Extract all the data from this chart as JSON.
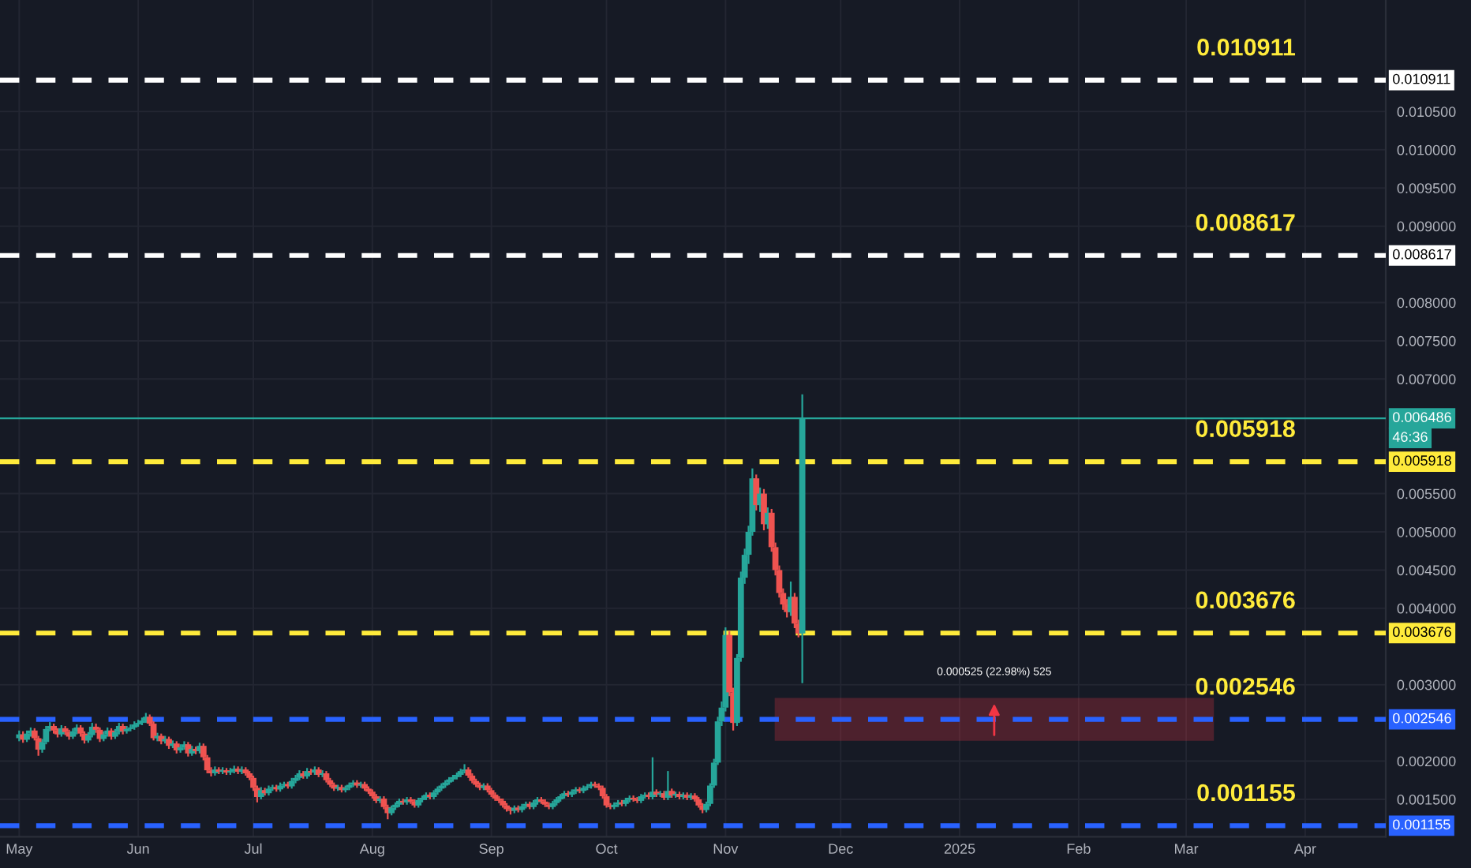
{
  "chart_data": {
    "type": "candlestick",
    "x": [
      "2024-05-01",
      "2024-05-02",
      "2024-05-03",
      "2024-05-04",
      "2024-05-05",
      "2024-05-06",
      "2024-05-07",
      "2024-05-08",
      "2024-05-09",
      "2024-05-10",
      "2024-05-11",
      "2024-05-12",
      "2024-05-13",
      "2024-05-14",
      "2024-05-15",
      "2024-05-16",
      "2024-05-17",
      "2024-05-18",
      "2024-05-19",
      "2024-05-20",
      "2024-05-21",
      "2024-05-22",
      "2024-05-23",
      "2024-05-24",
      "2024-05-25",
      "2024-05-26",
      "2024-05-27",
      "2024-05-28",
      "2024-05-29",
      "2024-05-30",
      "2024-05-31",
      "2024-06-01",
      "2024-06-02",
      "2024-06-03",
      "2024-06-04",
      "2024-06-05",
      "2024-06-06",
      "2024-06-07",
      "2024-06-08",
      "2024-06-09",
      "2024-06-10",
      "2024-06-11",
      "2024-06-12",
      "2024-06-13",
      "2024-06-14",
      "2024-06-15",
      "2024-06-16",
      "2024-06-17",
      "2024-06-18",
      "2024-06-19",
      "2024-06-20",
      "2024-06-21",
      "2024-06-22",
      "2024-06-23",
      "2024-06-24",
      "2024-06-25",
      "2024-06-26",
      "2024-06-27",
      "2024-06-28",
      "2024-06-29",
      "2024-06-30",
      "2024-07-01",
      "2024-07-02",
      "2024-07-03",
      "2024-07-04",
      "2024-07-05",
      "2024-07-06",
      "2024-07-07",
      "2024-07-08",
      "2024-07-09",
      "2024-07-10",
      "2024-07-11",
      "2024-07-12",
      "2024-07-13",
      "2024-07-14",
      "2024-07-15",
      "2024-07-16",
      "2024-07-17",
      "2024-07-18",
      "2024-07-19",
      "2024-07-20",
      "2024-07-21",
      "2024-07-22",
      "2024-07-23",
      "2024-07-24",
      "2024-07-25",
      "2024-07-26",
      "2024-07-27",
      "2024-07-28",
      "2024-07-29",
      "2024-07-30",
      "2024-07-31",
      "2024-08-01",
      "2024-08-02",
      "2024-08-03",
      "2024-08-04",
      "2024-08-05",
      "2024-08-06",
      "2024-08-07",
      "2024-08-08",
      "2024-08-09",
      "2024-08-10",
      "2024-08-11",
      "2024-08-12",
      "2024-08-13",
      "2024-08-14",
      "2024-08-15",
      "2024-08-16",
      "2024-08-17",
      "2024-08-18",
      "2024-08-19",
      "2024-08-20",
      "2024-08-21",
      "2024-08-22",
      "2024-08-23",
      "2024-08-24",
      "2024-08-25",
      "2024-08-26",
      "2024-08-27",
      "2024-08-28",
      "2024-08-29",
      "2024-08-30",
      "2024-08-31",
      "2024-09-01",
      "2024-09-02",
      "2024-09-03",
      "2024-09-04",
      "2024-09-05",
      "2024-09-06",
      "2024-09-07",
      "2024-09-08",
      "2024-09-09",
      "2024-09-10",
      "2024-09-11",
      "2024-09-12",
      "2024-09-13",
      "2024-09-14",
      "2024-09-15",
      "2024-09-16",
      "2024-09-17",
      "2024-09-18",
      "2024-09-19",
      "2024-09-20",
      "2024-09-21",
      "2024-09-22",
      "2024-09-23",
      "2024-09-24",
      "2024-09-25",
      "2024-09-26",
      "2024-09-27",
      "2024-09-28",
      "2024-09-29",
      "2024-09-30",
      "2024-10-01",
      "2024-10-02",
      "2024-10-03",
      "2024-10-04",
      "2024-10-05",
      "2024-10-06",
      "2024-10-07",
      "2024-10-08",
      "2024-10-09",
      "2024-10-10",
      "2024-10-11",
      "2024-10-12",
      "2024-10-13",
      "2024-10-14",
      "2024-10-15",
      "2024-10-16",
      "2024-10-17",
      "2024-10-18",
      "2024-10-19",
      "2024-10-20",
      "2024-10-21",
      "2024-10-22",
      "2024-10-23",
      "2024-10-24",
      "2024-10-25",
      "2024-10-26",
      "2024-10-27",
      "2024-10-28",
      "2024-10-29",
      "2024-10-30",
      "2024-10-31",
      "2024-11-01",
      "2024-11-02",
      "2024-11-03",
      "2024-11-04",
      "2024-11-05",
      "2024-11-06",
      "2024-11-07",
      "2024-11-08",
      "2024-11-09",
      "2024-11-10",
      "2024-11-11",
      "2024-11-12",
      "2024-11-13",
      "2024-11-14",
      "2024-11-15",
      "2024-11-16",
      "2024-11-17",
      "2024-11-18",
      "2024-11-19",
      "2024-11-20",
      "2024-11-21"
    ],
    "ohlc": [
      [
        0.0023,
        0.0024,
        0.00226,
        0.00235
      ],
      [
        0.00235,
        0.00239,
        0.00224,
        0.00228
      ],
      [
        0.00228,
        0.0024,
        0.00225,
        0.00236
      ],
      [
        0.00236,
        0.00244,
        0.00232,
        0.0024
      ],
      [
        0.0024,
        0.00243,
        0.00227,
        0.0023
      ],
      [
        0.0023,
        0.00233,
        0.00207,
        0.00215
      ],
      [
        0.00215,
        0.00229,
        0.00211,
        0.00225
      ],
      [
        0.00225,
        0.00246,
        0.00222,
        0.00242
      ],
      [
        0.00242,
        0.00251,
        0.00239,
        0.00246
      ],
      [
        0.00246,
        0.00249,
        0.00236,
        0.0024
      ],
      [
        0.0024,
        0.00243,
        0.00231,
        0.00235
      ],
      [
        0.00235,
        0.00247,
        0.00232,
        0.00243
      ],
      [
        0.00243,
        0.00246,
        0.00234,
        0.00238
      ],
      [
        0.00238,
        0.00241,
        0.00228,
        0.00232
      ],
      [
        0.00232,
        0.00243,
        0.00229,
        0.00239
      ],
      [
        0.00239,
        0.00248,
        0.00235,
        0.00244
      ],
      [
        0.00244,
        0.00247,
        0.00232,
        0.00236
      ],
      [
        0.00236,
        0.00239,
        0.00223,
        0.00227
      ],
      [
        0.00227,
        0.00238,
        0.00224,
        0.00234
      ],
      [
        0.00234,
        0.0025,
        0.00231,
        0.00245
      ],
      [
        0.00245,
        0.00249,
        0.00237,
        0.00241
      ],
      [
        0.00241,
        0.00244,
        0.00225,
        0.00229
      ],
      [
        0.00229,
        0.00239,
        0.00226,
        0.00235
      ],
      [
        0.00235,
        0.00244,
        0.00232,
        0.0024
      ],
      [
        0.0024,
        0.00243,
        0.00228,
        0.00232
      ],
      [
        0.00232,
        0.00242,
        0.00229,
        0.00238
      ],
      [
        0.00238,
        0.0025,
        0.00235,
        0.00246
      ],
      [
        0.00246,
        0.00249,
        0.00235,
        0.00239
      ],
      [
        0.00239,
        0.00246,
        0.00236,
        0.00242
      ],
      [
        0.00242,
        0.00248,
        0.00239,
        0.00244
      ],
      [
        0.00244,
        0.00252,
        0.00241,
        0.00248
      ],
      [
        0.00248,
        0.00254,
        0.00245,
        0.0025
      ],
      [
        0.0025,
        0.00257,
        0.00247,
        0.00253
      ],
      [
        0.00253,
        0.00263,
        0.0025,
        0.00258
      ],
      [
        0.00258,
        0.00261,
        0.00246,
        0.00249
      ],
      [
        0.00249,
        0.00252,
        0.00227,
        0.0023
      ],
      [
        0.0023,
        0.00237,
        0.00226,
        0.00233
      ],
      [
        0.00233,
        0.00236,
        0.00222,
        0.00226
      ],
      [
        0.00226,
        0.00233,
        0.00223,
        0.00229
      ],
      [
        0.00229,
        0.00232,
        0.00216,
        0.0022
      ],
      [
        0.0022,
        0.00227,
        0.00217,
        0.00223
      ],
      [
        0.00223,
        0.00226,
        0.0021,
        0.00214
      ],
      [
        0.00214,
        0.00222,
        0.00211,
        0.00218
      ],
      [
        0.00218,
        0.00226,
        0.00215,
        0.00222
      ],
      [
        0.00222,
        0.00225,
        0.00206,
        0.0021
      ],
      [
        0.0021,
        0.0022,
        0.00207,
        0.00216
      ],
      [
        0.00216,
        0.00219,
        0.00209,
        0.00213
      ],
      [
        0.00213,
        0.00224,
        0.0021,
        0.0022
      ],
      [
        0.0022,
        0.00223,
        0.00201,
        0.00205
      ],
      [
        0.00205,
        0.00208,
        0.00184,
        0.00188
      ],
      [
        0.00188,
        0.00192,
        0.0018,
        0.00184
      ],
      [
        0.00184,
        0.00193,
        0.00181,
        0.00189
      ],
      [
        0.00189,
        0.00192,
        0.00183,
        0.00186
      ],
      [
        0.00186,
        0.00192,
        0.00183,
        0.00188
      ],
      [
        0.00188,
        0.00191,
        0.00182,
        0.00185
      ],
      [
        0.00185,
        0.00191,
        0.00182,
        0.00187
      ],
      [
        0.00187,
        0.00194,
        0.00184,
        0.0019
      ],
      [
        0.0019,
        0.00193,
        0.00183,
        0.00186
      ],
      [
        0.00186,
        0.00193,
        0.00183,
        0.00189
      ],
      [
        0.00189,
        0.00192,
        0.00181,
        0.00184
      ],
      [
        0.00184,
        0.00187,
        0.00175,
        0.00178
      ],
      [
        0.00178,
        0.00181,
        0.00161,
        0.00165
      ],
      [
        0.00165,
        0.00168,
        0.00146,
        0.00153
      ],
      [
        0.00153,
        0.00166,
        0.0015,
        0.00162
      ],
      [
        0.00162,
        0.00165,
        0.00155,
        0.00158
      ],
      [
        0.00158,
        0.00168,
        0.00155,
        0.00164
      ],
      [
        0.00164,
        0.00169,
        0.00161,
        0.00166
      ],
      [
        0.00166,
        0.00169,
        0.0016,
        0.00163
      ],
      [
        0.00163,
        0.00172,
        0.0016,
        0.00168
      ],
      [
        0.00168,
        0.00173,
        0.00165,
        0.0017
      ],
      [
        0.0017,
        0.00173,
        0.00164,
        0.00167
      ],
      [
        0.00167,
        0.00178,
        0.00164,
        0.00174
      ],
      [
        0.00174,
        0.00182,
        0.00171,
        0.00178
      ],
      [
        0.00178,
        0.00188,
        0.00175,
        0.00184
      ],
      [
        0.00184,
        0.00187,
        0.00177,
        0.0018
      ],
      [
        0.0018,
        0.00191,
        0.00177,
        0.00187
      ],
      [
        0.00187,
        0.0019,
        0.00182,
        0.00185
      ],
      [
        0.00185,
        0.00193,
        0.00182,
        0.00189
      ],
      [
        0.00189,
        0.00192,
        0.00179,
        0.00182
      ],
      [
        0.00182,
        0.00188,
        0.00179,
        0.00184
      ],
      [
        0.00184,
        0.00187,
        0.00172,
        0.00175
      ],
      [
        0.00175,
        0.00178,
        0.00166,
        0.00169
      ],
      [
        0.00169,
        0.00172,
        0.00161,
        0.00164
      ],
      [
        0.00164,
        0.00169,
        0.00161,
        0.00166
      ],
      [
        0.00166,
        0.00169,
        0.00159,
        0.00162
      ],
      [
        0.00162,
        0.00168,
        0.00159,
        0.00165
      ],
      [
        0.00165,
        0.00172,
        0.00162,
        0.00169
      ],
      [
        0.00169,
        0.00175,
        0.00166,
        0.00172
      ],
      [
        0.00172,
        0.00175,
        0.00165,
        0.00168
      ],
      [
        0.00168,
        0.00173,
        0.00165,
        0.0017
      ],
      [
        0.0017,
        0.00173,
        0.00161,
        0.00164
      ],
      [
        0.00164,
        0.00167,
        0.00157,
        0.0016
      ],
      [
        0.0016,
        0.00163,
        0.00151,
        0.00154
      ],
      [
        0.00154,
        0.00157,
        0.00145,
        0.00148
      ],
      [
        0.00148,
        0.00154,
        0.00145,
        0.00151
      ],
      [
        0.00151,
        0.00154,
        0.00137,
        0.0014
      ],
      [
        0.0014,
        0.00143,
        0.00124,
        0.00132
      ],
      [
        0.00132,
        0.00142,
        0.00129,
        0.00139
      ],
      [
        0.00139,
        0.00146,
        0.00136,
        0.00143
      ],
      [
        0.00143,
        0.00151,
        0.0014,
        0.00148
      ],
      [
        0.00148,
        0.00151,
        0.00143,
        0.00146
      ],
      [
        0.00146,
        0.00153,
        0.00143,
        0.0015
      ],
      [
        0.0015,
        0.00153,
        0.00144,
        0.00147
      ],
      [
        0.00147,
        0.0015,
        0.00139,
        0.00142
      ],
      [
        0.00142,
        0.00152,
        0.00139,
        0.00149
      ],
      [
        0.00149,
        0.00155,
        0.00146,
        0.00152
      ],
      [
        0.00152,
        0.00159,
        0.00149,
        0.00156
      ],
      [
        0.00156,
        0.00159,
        0.0015,
        0.00153
      ],
      [
        0.00153,
        0.00162,
        0.0015,
        0.00159
      ],
      [
        0.00159,
        0.00167,
        0.00156,
        0.00164
      ],
      [
        0.00164,
        0.00171,
        0.00161,
        0.00168
      ],
      [
        0.00168,
        0.00175,
        0.00165,
        0.00172
      ],
      [
        0.00172,
        0.00179,
        0.00169,
        0.00176
      ],
      [
        0.00176,
        0.00182,
        0.00173,
        0.00179
      ],
      [
        0.00179,
        0.00185,
        0.00176,
        0.00182
      ],
      [
        0.00182,
        0.0019,
        0.00179,
        0.00187
      ],
      [
        0.00187,
        0.00196,
        0.00184,
        0.00189
      ],
      [
        0.00189,
        0.00192,
        0.00178,
        0.00181
      ],
      [
        0.00181,
        0.00184,
        0.00171,
        0.00174
      ],
      [
        0.00174,
        0.00177,
        0.00166,
        0.00169
      ],
      [
        0.00169,
        0.00172,
        0.00162,
        0.00165
      ],
      [
        0.00165,
        0.00171,
        0.00162,
        0.00168
      ],
      [
        0.00168,
        0.00171,
        0.00159,
        0.00162
      ],
      [
        0.00162,
        0.00165,
        0.00153,
        0.00156
      ],
      [
        0.00156,
        0.00159,
        0.00148,
        0.00151
      ],
      [
        0.00151,
        0.00154,
        0.00145,
        0.00148
      ],
      [
        0.00148,
        0.00151,
        0.00139,
        0.00142
      ],
      [
        0.00142,
        0.00145,
        0.00134,
        0.00137
      ],
      [
        0.00137,
        0.0014,
        0.0013,
        0.00135
      ],
      [
        0.00135,
        0.00142,
        0.00132,
        0.00139
      ],
      [
        0.00139,
        0.00142,
        0.00133,
        0.00136
      ],
      [
        0.00136,
        0.00144,
        0.00133,
        0.00141
      ],
      [
        0.00141,
        0.00147,
        0.00138,
        0.00144
      ],
      [
        0.00144,
        0.00147,
        0.00137,
        0.0014
      ],
      [
        0.0014,
        0.00149,
        0.00137,
        0.00146
      ],
      [
        0.00146,
        0.00153,
        0.00143,
        0.0015
      ],
      [
        0.0015,
        0.00153,
        0.00144,
        0.00147
      ],
      [
        0.00147,
        0.0015,
        0.0014,
        0.00143
      ],
      [
        0.00143,
        0.00146,
        0.00137,
        0.0014
      ],
      [
        0.0014,
        0.00148,
        0.00137,
        0.00145
      ],
      [
        0.00145,
        0.00153,
        0.00142,
        0.0015
      ],
      [
        0.0015,
        0.00157,
        0.00147,
        0.00154
      ],
      [
        0.00154,
        0.00161,
        0.00151,
        0.00158
      ],
      [
        0.00158,
        0.00161,
        0.00153,
        0.00156
      ],
      [
        0.00156,
        0.00163,
        0.00153,
        0.0016
      ],
      [
        0.0016,
        0.00166,
        0.00157,
        0.00163
      ],
      [
        0.00163,
        0.00166,
        0.00158,
        0.00161
      ],
      [
        0.00161,
        0.00168,
        0.00158,
        0.00165
      ],
      [
        0.00165,
        0.0017,
        0.00162,
        0.00167
      ],
      [
        0.00167,
        0.00173,
        0.00164,
        0.0017
      ],
      [
        0.0017,
        0.00173,
        0.00165,
        0.00168
      ],
      [
        0.00168,
        0.00171,
        0.00162,
        0.00165
      ],
      [
        0.00165,
        0.00168,
        0.00151,
        0.00154
      ],
      [
        0.00154,
        0.00157,
        0.00139,
        0.00142
      ],
      [
        0.00142,
        0.00145,
        0.00137,
        0.0014
      ],
      [
        0.0014,
        0.00146,
        0.00137,
        0.00143
      ],
      [
        0.00143,
        0.00149,
        0.0014,
        0.00146
      ],
      [
        0.00146,
        0.00149,
        0.00141,
        0.00144
      ],
      [
        0.00144,
        0.00152,
        0.00141,
        0.00149
      ],
      [
        0.00149,
        0.00155,
        0.00146,
        0.00152
      ],
      [
        0.00152,
        0.00155,
        0.00147,
        0.0015
      ],
      [
        0.0015,
        0.00153,
        0.00145,
        0.00148
      ],
      [
        0.00148,
        0.00157,
        0.00145,
        0.00154
      ],
      [
        0.00154,
        0.00159,
        0.00151,
        0.00156
      ],
      [
        0.00156,
        0.00159,
        0.0015,
        0.00153
      ],
      [
        0.00153,
        0.00205,
        0.0015,
        0.0016
      ],
      [
        0.0016,
        0.00163,
        0.00153,
        0.00156
      ],
      [
        0.00156,
        0.00161,
        0.00153,
        0.00158
      ],
      [
        0.00158,
        0.00161,
        0.00149,
        0.00152
      ],
      [
        0.00152,
        0.00187,
        0.00149,
        0.00161
      ],
      [
        0.00161,
        0.00164,
        0.00152,
        0.00155
      ],
      [
        0.00155,
        0.0016,
        0.00152,
        0.00157
      ],
      [
        0.00157,
        0.0016,
        0.0015,
        0.00153
      ],
      [
        0.00153,
        0.00159,
        0.0015,
        0.00156
      ],
      [
        0.00156,
        0.00159,
        0.00149,
        0.00152
      ],
      [
        0.00152,
        0.00158,
        0.00149,
        0.00155
      ],
      [
        0.00155,
        0.00158,
        0.00147,
        0.0015
      ],
      [
        0.0015,
        0.00153,
        0.00139,
        0.00142
      ],
      [
        0.00142,
        0.00145,
        0.00132,
        0.00136
      ],
      [
        0.00136,
        0.00147,
        0.00133,
        0.00144
      ],
      [
        0.00144,
        0.00171,
        0.00141,
        0.00168
      ],
      [
        0.00168,
        0.00203,
        0.00165,
        0.00198
      ],
      [
        0.00198,
        0.00258,
        0.00195,
        0.00252
      ],
      [
        0.00252,
        0.00278,
        0.00246,
        0.0027
      ],
      [
        0.0027,
        0.00375,
        0.00265,
        0.00365
      ],
      [
        0.00365,
        0.0037,
        0.00285,
        0.0029
      ],
      [
        0.0029,
        0.00296,
        0.0024,
        0.0025
      ],
      [
        0.0025,
        0.0034,
        0.00246,
        0.00335
      ],
      [
        0.00335,
        0.00448,
        0.0033,
        0.0044
      ],
      [
        0.0044,
        0.00478,
        0.00432,
        0.0047
      ],
      [
        0.0047,
        0.00508,
        0.00458,
        0.005
      ],
      [
        0.005,
        0.00583,
        0.00495,
        0.0057
      ],
      [
        0.0057,
        0.00575,
        0.00528,
        0.00535
      ],
      [
        0.00535,
        0.00558,
        0.00526,
        0.0055
      ],
      [
        0.0055,
        0.00556,
        0.00502,
        0.0051
      ],
      [
        0.0051,
        0.00532,
        0.00504,
        0.00525
      ],
      [
        0.00525,
        0.0053,
        0.00474,
        0.0048
      ],
      [
        0.0048,
        0.00486,
        0.00443,
        0.0045
      ],
      [
        0.0045,
        0.00456,
        0.00414,
        0.0042
      ],
      [
        0.0042,
        0.00426,
        0.00398,
        0.00405
      ],
      [
        0.00405,
        0.00412,
        0.00388,
        0.00395
      ],
      [
        0.00395,
        0.00435,
        0.0039,
        0.00415
      ],
      [
        0.00415,
        0.0042,
        0.00374,
        0.0038
      ],
      [
        0.0038,
        0.00385,
        0.00362,
        0.00367
      ],
      [
        0.00367,
        0.0068,
        0.00302,
        0.006486
      ]
    ],
    "xlim": [
      "2024-04-26",
      "2025-04-22"
    ],
    "xticks": [
      {
        "value": "2024-05-01",
        "label": "May"
      },
      {
        "value": "2024-06-01",
        "label": "Jun"
      },
      {
        "value": "2024-07-01",
        "label": "Jul"
      },
      {
        "value": "2024-08-01",
        "label": "Aug"
      },
      {
        "value": "2024-09-01",
        "label": "Sep"
      },
      {
        "value": "2024-10-01",
        "label": "Oct"
      },
      {
        "value": "2024-11-01",
        "label": "Nov"
      },
      {
        "value": "2024-12-01",
        "label": "Dec"
      },
      {
        "value": "2025-01-01",
        "label": "2025"
      },
      {
        "value": "2025-02-01",
        "label": "Feb"
      },
      {
        "value": "2025-03-01",
        "label": "Mar"
      },
      {
        "value": "2025-04-01",
        "label": "Apr"
      }
    ],
    "ylim": [
      0.00101,
      0.01196
    ],
    "yticks": [
      {
        "value": 0.0015,
        "label": "0.001500"
      },
      {
        "value": 0.002,
        "label": "0.002000"
      },
      {
        "value": 0.003,
        "label": "0.003000"
      },
      {
        "value": 0.004,
        "label": "0.004000"
      },
      {
        "value": 0.0045,
        "label": "0.004500"
      },
      {
        "value": 0.005,
        "label": "0.005000"
      },
      {
        "value": 0.0055,
        "label": "0.005500"
      },
      {
        "value": 0.007,
        "label": "0.007000"
      },
      {
        "value": 0.0075,
        "label": "0.007500"
      },
      {
        "value": 0.008,
        "label": "0.008000"
      },
      {
        "value": 0.009,
        "label": "0.009000"
      },
      {
        "value": 0.0095,
        "label": "0.009500"
      },
      {
        "value": 0.01,
        "label": "0.010000"
      },
      {
        "value": 0.0105,
        "label": "0.010500"
      }
    ],
    "grid": true,
    "ref_lines": [
      {
        "axis": "y",
        "value": 0.010911,
        "label": "0.010911",
        "color": "#ffffff",
        "line_style": "dashed"
      },
      {
        "axis": "y",
        "value": 0.008617,
        "label": "0.008617",
        "color": "#ffffff",
        "line_style": "dashed"
      },
      {
        "axis": "y",
        "value": 0.005918,
        "label": "0.005918",
        "color": "#ffeb3b",
        "line_style": "dashed"
      },
      {
        "axis": "y",
        "value": 0.003676,
        "label": "0.003676",
        "color": "#ffeb3b",
        "line_style": "dashed"
      },
      {
        "axis": "y",
        "value": 0.002546,
        "label": "0.002546",
        "color": "#2962ff",
        "line_style": "dashed"
      },
      {
        "axis": "y",
        "value": 0.001155,
        "label": "0.001155",
        "color": "#2962ff",
        "line_style": "dashed"
      },
      {
        "axis": "y",
        "value": 0.006486,
        "label": "0.006486",
        "color": "#26a69a",
        "line_style": "solid"
      }
    ],
    "bands": [
      {
        "axis": "y",
        "from": 0.002284,
        "to": 0.002809,
        "color": "#f23645"
      }
    ],
    "annotations": [
      {
        "text": "0.000525 (22.98%) 525",
        "x": "2025-01-10",
        "y": 0.002809
      },
      "46:36"
    ]
  }
}
